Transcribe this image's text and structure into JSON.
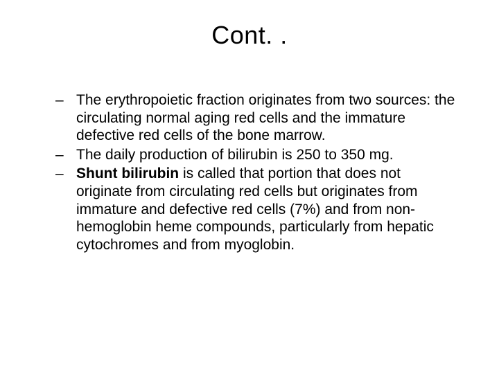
{
  "slide": {
    "title": "Cont. .",
    "bullets": [
      {
        "segments": [
          {
            "text": "The erythropoietic fraction originates from two sources: the circulating normal aging red cells and the immature defective red cells of the bone marrow.",
            "bold": false
          }
        ]
      },
      {
        "segments": [
          {
            "text": "The daily production of bilirubin is 250 to 350 mg.",
            "bold": false
          }
        ]
      },
      {
        "segments": [
          {
            "text": "Shunt bilirubin",
            "bold": true
          },
          {
            "text": " is called that portion that does not originate from circulating red cells but originates from immature and defective red cells (7%) and from non-hemoglobin heme compounds, particularly from hepatic cytochromes and from myoglobin.",
            "bold": false
          }
        ]
      }
    ]
  },
  "style": {
    "background_color": "#ffffff",
    "text_color": "#000000",
    "title_fontsize": 36,
    "body_fontsize": 21,
    "font_family": "Arial",
    "bullet_marker": "–"
  }
}
